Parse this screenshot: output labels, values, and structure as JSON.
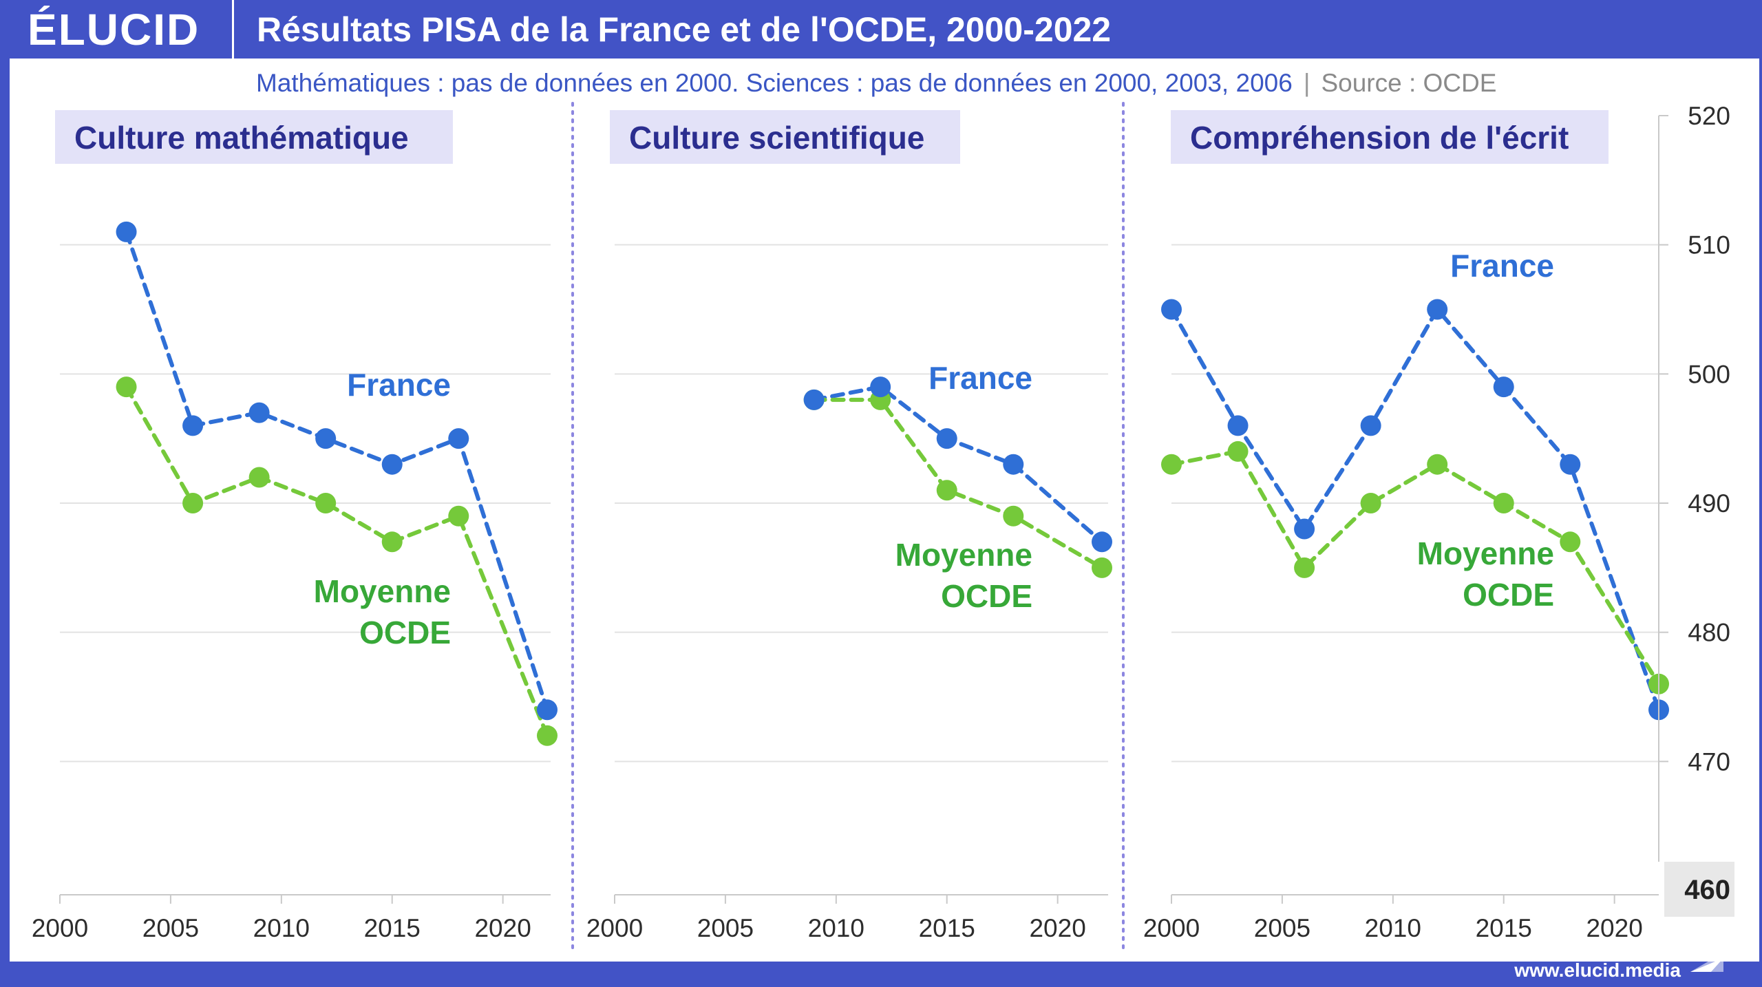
{
  "header": {
    "logo": "ÉLUCID",
    "title": "Résultats PISA de la France et de l'OCDE, 2000-2022"
  },
  "subtitle": {
    "note": "Mathématiques : pas de données en 2000. Sciences : pas de données en 2000, 2003, 2006",
    "separator": "|",
    "source": "Source : OCDE"
  },
  "footer": {
    "url": "www.elucid.media"
  },
  "colors": {
    "header_bg": "#4253c6",
    "france": "#2f6fd6",
    "ocde": "#75c93a",
    "ocde_label": "#37a838",
    "france_label": "#2f6fd6",
    "panel_title_bg": "#e3e2f8",
    "panel_title_text": "#2b2e8f",
    "separator": "#8c86e0"
  },
  "chart_data": [
    {
      "type": "line",
      "title": "Culture mathématique",
      "xlim": [
        2000,
        2022
      ],
      "xticks": [
        2000,
        2005,
        2010,
        2015,
        2020
      ],
      "ylim": [
        460,
        520
      ],
      "series": [
        {
          "name": "France",
          "points": [
            [
              2003,
              511
            ],
            [
              2006,
              496
            ],
            [
              2009,
              497
            ],
            [
              2012,
              495
            ],
            [
              2015,
              493
            ],
            [
              2018,
              495
            ],
            [
              2022,
              474
            ]
          ]
        },
        {
          "name": "Moyenne OCDE",
          "points": [
            [
              2003,
              499
            ],
            [
              2006,
              490
            ],
            [
              2009,
              492
            ],
            [
              2012,
              490
            ],
            [
              2015,
              487
            ],
            [
              2018,
              489
            ],
            [
              2022,
              472
            ]
          ]
        }
      ],
      "labels": {
        "france": [
          "France"
        ],
        "ocde": [
          "Moyenne",
          "OCDE"
        ]
      }
    },
    {
      "type": "line",
      "title": "Culture scientifique",
      "xlim": [
        2000,
        2022
      ],
      "xticks": [
        2000,
        2005,
        2010,
        2015,
        2020
      ],
      "ylim": [
        460,
        520
      ],
      "series": [
        {
          "name": "France",
          "points": [
            [
              2009,
              498
            ],
            [
              2012,
              499
            ],
            [
              2015,
              495
            ],
            [
              2018,
              493
            ],
            [
              2022,
              487
            ]
          ]
        },
        {
          "name": "Moyenne OCDE",
          "points": [
            [
              2009,
              498
            ],
            [
              2012,
              498
            ],
            [
              2015,
              491
            ],
            [
              2018,
              489
            ],
            [
              2022,
              485
            ]
          ]
        }
      ],
      "labels": {
        "france": [
          "France"
        ],
        "ocde": [
          "Moyenne",
          "OCDE"
        ]
      }
    },
    {
      "type": "line",
      "title": "Compréhension de l'écrit",
      "xlim": [
        2000,
        2022
      ],
      "xticks": [
        2000,
        2005,
        2010,
        2015,
        2020
      ],
      "ylim": [
        460,
        520
      ],
      "series": [
        {
          "name": "France",
          "points": [
            [
              2000,
              505
            ],
            [
              2003,
              496
            ],
            [
              2006,
              488
            ],
            [
              2009,
              496
            ],
            [
              2012,
              505
            ],
            [
              2015,
              499
            ],
            [
              2018,
              493
            ],
            [
              2022,
              474
            ]
          ]
        },
        {
          "name": "Moyenne OCDE",
          "points": [
            [
              2000,
              493
            ],
            [
              2003,
              494
            ],
            [
              2006,
              485
            ],
            [
              2009,
              490
            ],
            [
              2012,
              493
            ],
            [
              2015,
              490
            ],
            [
              2018,
              487
            ],
            [
              2022,
              476
            ]
          ]
        }
      ],
      "labels": {
        "france": [
          "France"
        ],
        "ocde": [
          "Moyenne",
          "OCDE"
        ]
      }
    }
  ],
  "y_axis": {
    "ticks": [
      470,
      480,
      490,
      500,
      510,
      520
    ],
    "min_label": "460"
  }
}
